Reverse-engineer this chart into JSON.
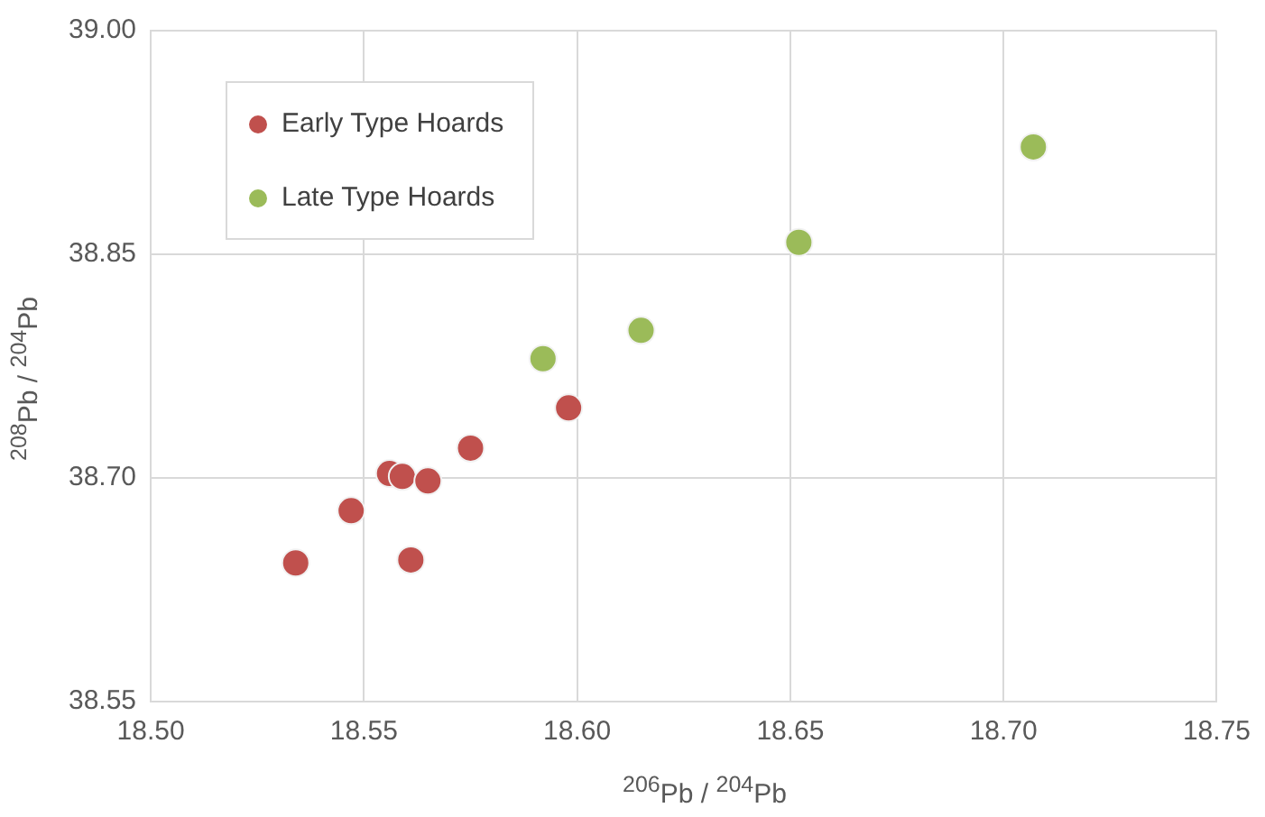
{
  "chart_data": {
    "type": "scatter",
    "xlabel": "$^{206}$Pb / $^{204}$Pb",
    "ylabel": "$^{208}$Pb / $^{204}$Pb",
    "xlim": [
      18.5,
      18.75
    ],
    "xticks": [
      {
        "value": 18.5,
        "label": "18.50"
      },
      {
        "value": 18.55,
        "label": "18.55"
      },
      {
        "value": 18.6,
        "label": "18.60"
      },
      {
        "value": 18.65,
        "label": "18.65"
      },
      {
        "value": 18.7,
        "label": "18.70"
      },
      {
        "value": 18.75,
        "label": "18.75"
      }
    ],
    "ylim": [
      38.55,
      39.0
    ],
    "yticks": [
      38.55,
      {
        "value": 38.7,
        "label": "38.70"
      },
      38.85,
      {
        "value": 39.0,
        "label": "39.00"
      }
    ],
    "grid": true,
    "legend": "top left",
    "marker": "circle",
    "series": [
      {
        "name": "Early Type Hoards",
        "color": "#c0504d",
        "x": [
          18.534,
          18.547,
          18.556,
          18.559,
          18.565,
          18.561,
          18.575,
          18.598
        ],
        "values": [
          38.643,
          38.678,
          38.703,
          38.701,
          38.698,
          38.645,
          38.72,
          38.747
        ]
      },
      {
        "name": "Late Type Hoards",
        "color": "#9bbb59",
        "x": [
          18.592,
          18.615,
          18.652,
          18.707
        ],
        "values": [
          38.78,
          38.799,
          38.858,
          38.922
        ]
      }
    ]
  }
}
